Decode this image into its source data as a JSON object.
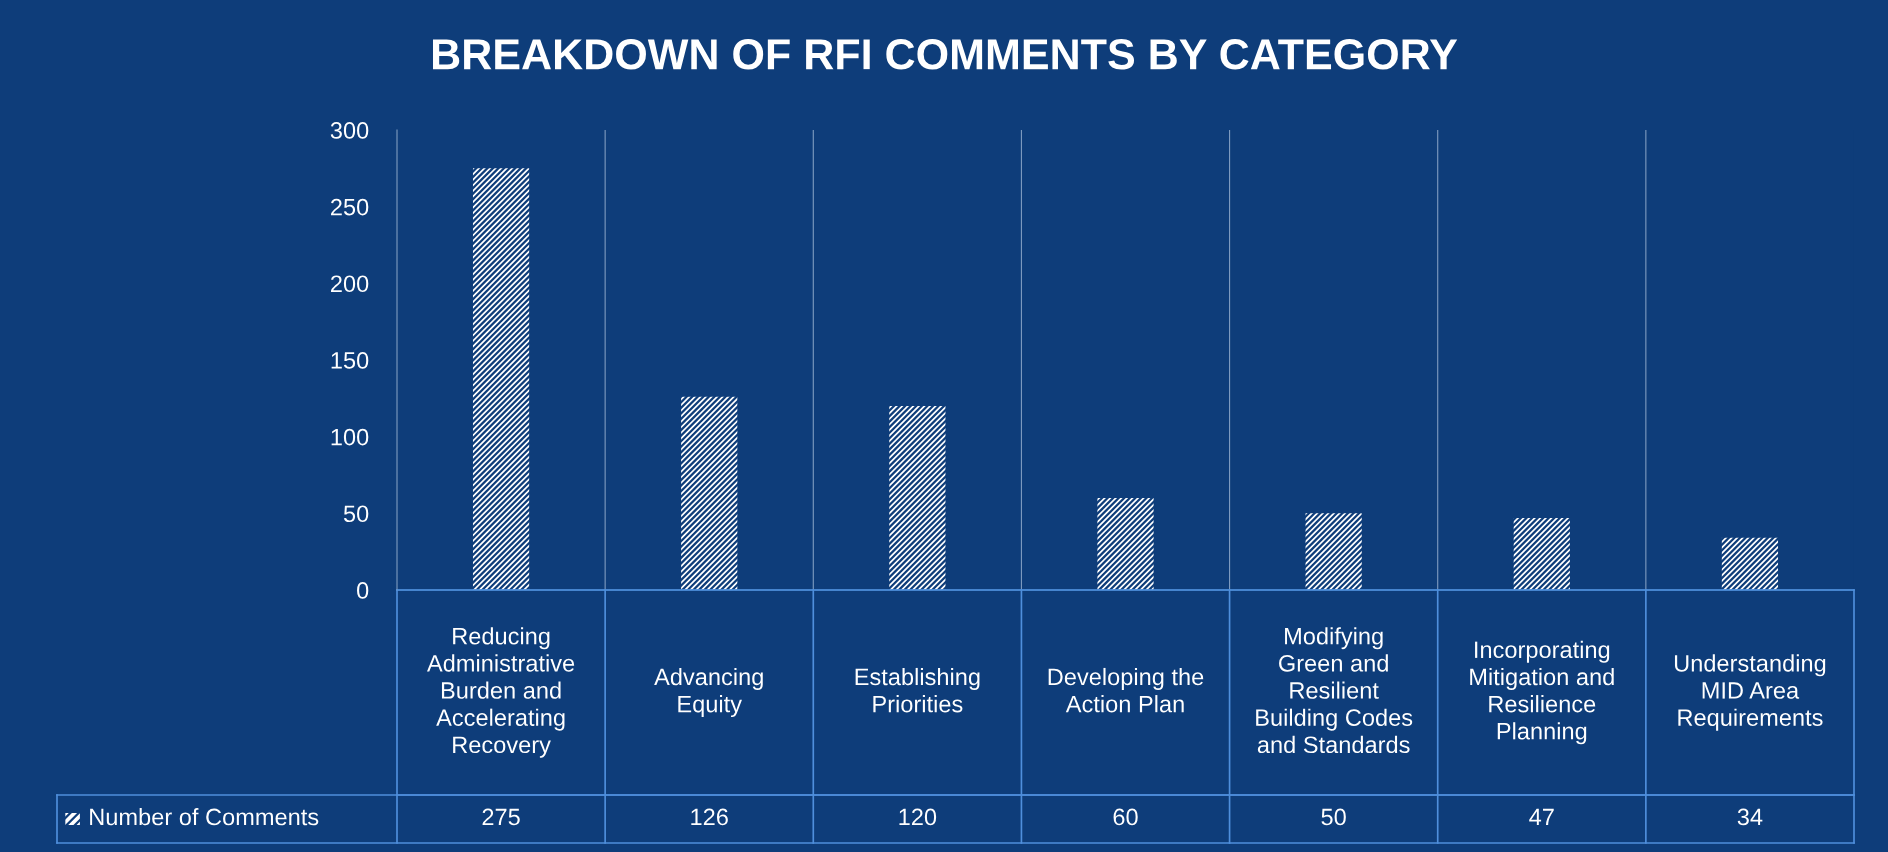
{
  "chart_data": {
    "type": "bar",
    "title": "BREAKDOWN OF RFI COMMENTS BY CATEGORY",
    "categories": [
      "Reducing\nAdministrative\nBurden and\nAccelerating\nRecovery",
      "Advancing\nEquity",
      "Establishing\nPriorities",
      "Developing the\nAction Plan",
      "Modifying\nGreen and\nResilient\nBuilding Codes\nand Standards",
      "Incorporating\nMitigation and\nResilience\nPlanning",
      "Understanding\nMID Area\nRequirements"
    ],
    "series": [
      {
        "name": "Number of Comments",
        "color": "#ffffff",
        "values": [
          275,
          126,
          120,
          60,
          50,
          47,
          34
        ]
      }
    ],
    "ylim": [
      0,
      300
    ],
    "yticks": [
      0,
      50,
      100,
      150,
      200,
      250,
      300
    ],
    "grid": "x",
    "data_labels": true
  }
}
